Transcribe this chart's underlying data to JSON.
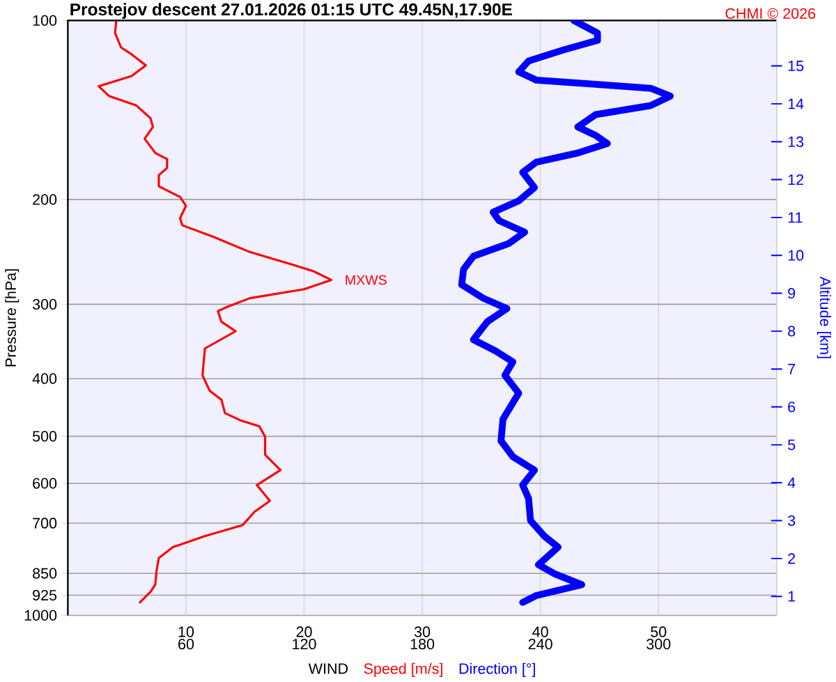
{
  "chart_data": {
    "type": "line",
    "orientation": "horizontal",
    "title": "Prostejov   descent   27.01.2026 01:15 UTC   49.45N,17.90E",
    "xlabel": "WIND",
    "ylabel": "Pressure [hPa]",
    "y2label": "Altitude [km]",
    "annotations": [
      {
        "text": "MXWS",
        "x": 22.3,
        "y": 273
      },
      "CHMI © 2026"
    ],
    "series": [
      {
        "name": "Speed [m/s]",
        "color": "#ff0000",
        "values": [
          4.1,
          4.0,
          4.5,
          5.4,
          6.6,
          5.4,
          2.6,
          3.5,
          5.8,
          7.0,
          7.2,
          6.5,
          7.4,
          8.4,
          8.4,
          7.7,
          7.7,
          9.5,
          10.0,
          9.5,
          9.7,
          12.3,
          15.4,
          19.2,
          20.8,
          22.3,
          20.0,
          15.4,
          13.5,
          12.7,
          13.0,
          14.2,
          11.6,
          11.4,
          12.0,
          13.0,
          13.3,
          14.6,
          16.2,
          16.7,
          16.7,
          18.0,
          16.0,
          17.1,
          15.8,
          14.8,
          11.6,
          8.9,
          7.7,
          7.5,
          7.4,
          7.0,
          6.1
        ],
        "x": [
          100,
          105,
          111,
          114,
          119,
          124,
          129,
          134,
          139,
          146,
          151,
          158,
          167,
          171,
          177,
          182,
          190,
          198,
          205,
          215,
          221,
          231,
          245,
          258,
          264,
          273,
          283,
          293,
          303,
          308,
          321,
          333,
          356,
          395,
          419,
          434,
          457,
          470,
          481,
          501,
          537,
          570,
          604,
          642,
          670,
          705,
          736,
          768,
          801,
          844,
          888,
          913,
          951
        ]
      },
      {
        "name": "Direction [°]",
        "color": "#0000ff",
        "axis": "x2",
        "values": [
          257,
          269,
          269,
          252,
          234,
          229,
          238,
          268,
          296,
          306,
          296,
          268,
          259,
          268,
          274,
          259,
          238,
          231,
          237,
          229,
          216,
          219,
          232,
          224,
          206,
          201,
          200,
          211,
          223,
          213,
          206,
          217,
          226,
          222,
          229,
          221,
          220,
          226,
          237,
          231,
          234,
          235,
          242,
          249,
          239,
          247,
          261,
          238,
          231
        ],
        "x": [
          100,
          105,
          108,
          112,
          117,
          122,
          126,
          128,
          130,
          134,
          139,
          144,
          151,
          156,
          161,
          167,
          173,
          180,
          191,
          201,
          210,
          217,
          227,
          237,
          249,
          262,
          278,
          293,
          305,
          321,
          344,
          359,
          375,
          395,
          423,
          468,
          509,
          541,
          570,
          604,
          636,
          693,
          736,
          768,
          822,
          851,
          888,
          926,
          951
        ]
      }
    ],
    "xlim": [
      0,
      60
    ],
    "xticks": [
      10,
      20,
      30,
      40,
      50
    ],
    "x2lim": [
      0,
      360
    ],
    "x2ticks": [
      60,
      120,
      180,
      240,
      300
    ],
    "ylim": [
      1000,
      100
    ],
    "yticks": [
      100,
      200,
      300,
      400,
      500,
      600,
      700,
      850,
      925,
      1000
    ],
    "log": "y",
    "y2lim": [
      0.5,
      16.2
    ],
    "y2ticks": [
      1,
      2,
      3,
      4,
      5,
      6,
      7,
      8,
      9,
      10,
      11,
      12,
      13,
      14,
      15
    ],
    "grid": true
  }
}
